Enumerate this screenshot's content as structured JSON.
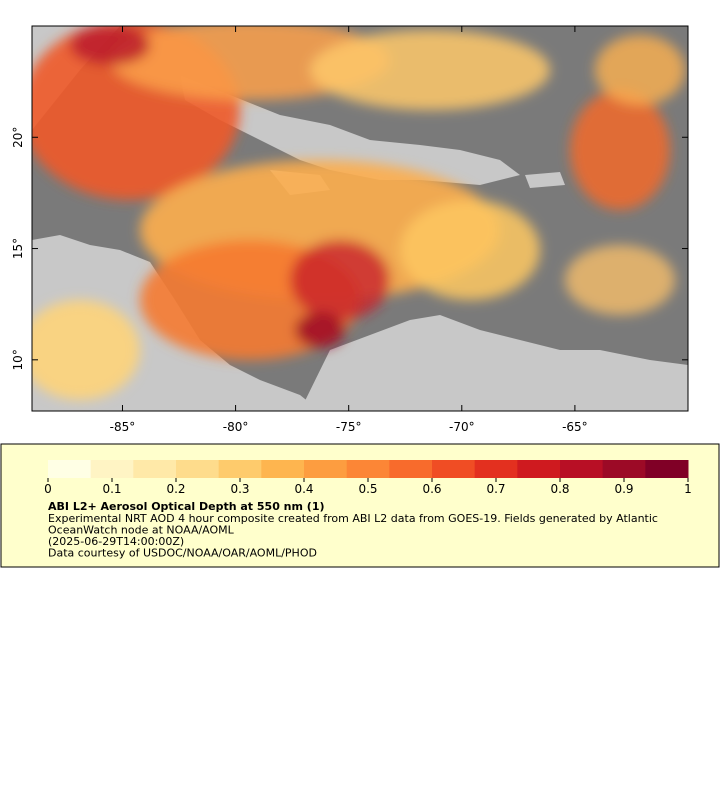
{
  "map": {
    "lon_range": [
      -89,
      -60
    ],
    "lat_range": [
      7.7,
      25
    ],
    "lon_ticks": [
      {
        "value": -85,
        "label": "-85°"
      },
      {
        "value": -80,
        "label": "-80°"
      },
      {
        "value": -75,
        "label": "-75°"
      },
      {
        "value": -70,
        "label": "-70°"
      },
      {
        "value": -65,
        "label": "-65°"
      }
    ],
    "lat_ticks": [
      {
        "value": 10,
        "label": "10°"
      },
      {
        "value": 15,
        "label": "15°"
      },
      {
        "value": 20,
        "label": "20°"
      }
    ]
  },
  "legend": {
    "colorbar": {
      "range": [
        0,
        1
      ],
      "ticks": [
        0,
        0.1,
        0.2,
        0.3,
        0.4,
        0.5,
        0.6,
        0.7,
        0.8,
        0.9,
        1
      ],
      "colors": [
        "#ffffe5",
        "#fff4c4",
        "#ffe9a8",
        "#fedc8c",
        "#fecb6c",
        "#feb54f",
        "#fd9d40",
        "#fc8636",
        "#f86b2c",
        "#f04d24",
        "#e3301f",
        "#cf1a1f",
        "#b80f25",
        "#9c0a26",
        "#800026"
      ]
    },
    "title": "ABI L2+ Aerosol Optical Depth at 550 nm (1)",
    "lines": [
      "Experimental NRT AOD 4 hour composite created from ABI L2 data from GOES-19. Fields generated by Atlantic",
      "OceanWatch node at NOAA/AOML",
      "(2025-06-29T14:00:00Z)",
      "Data courtesy of USDOC/NOAA/OAR/AOML/PHOD"
    ]
  }
}
